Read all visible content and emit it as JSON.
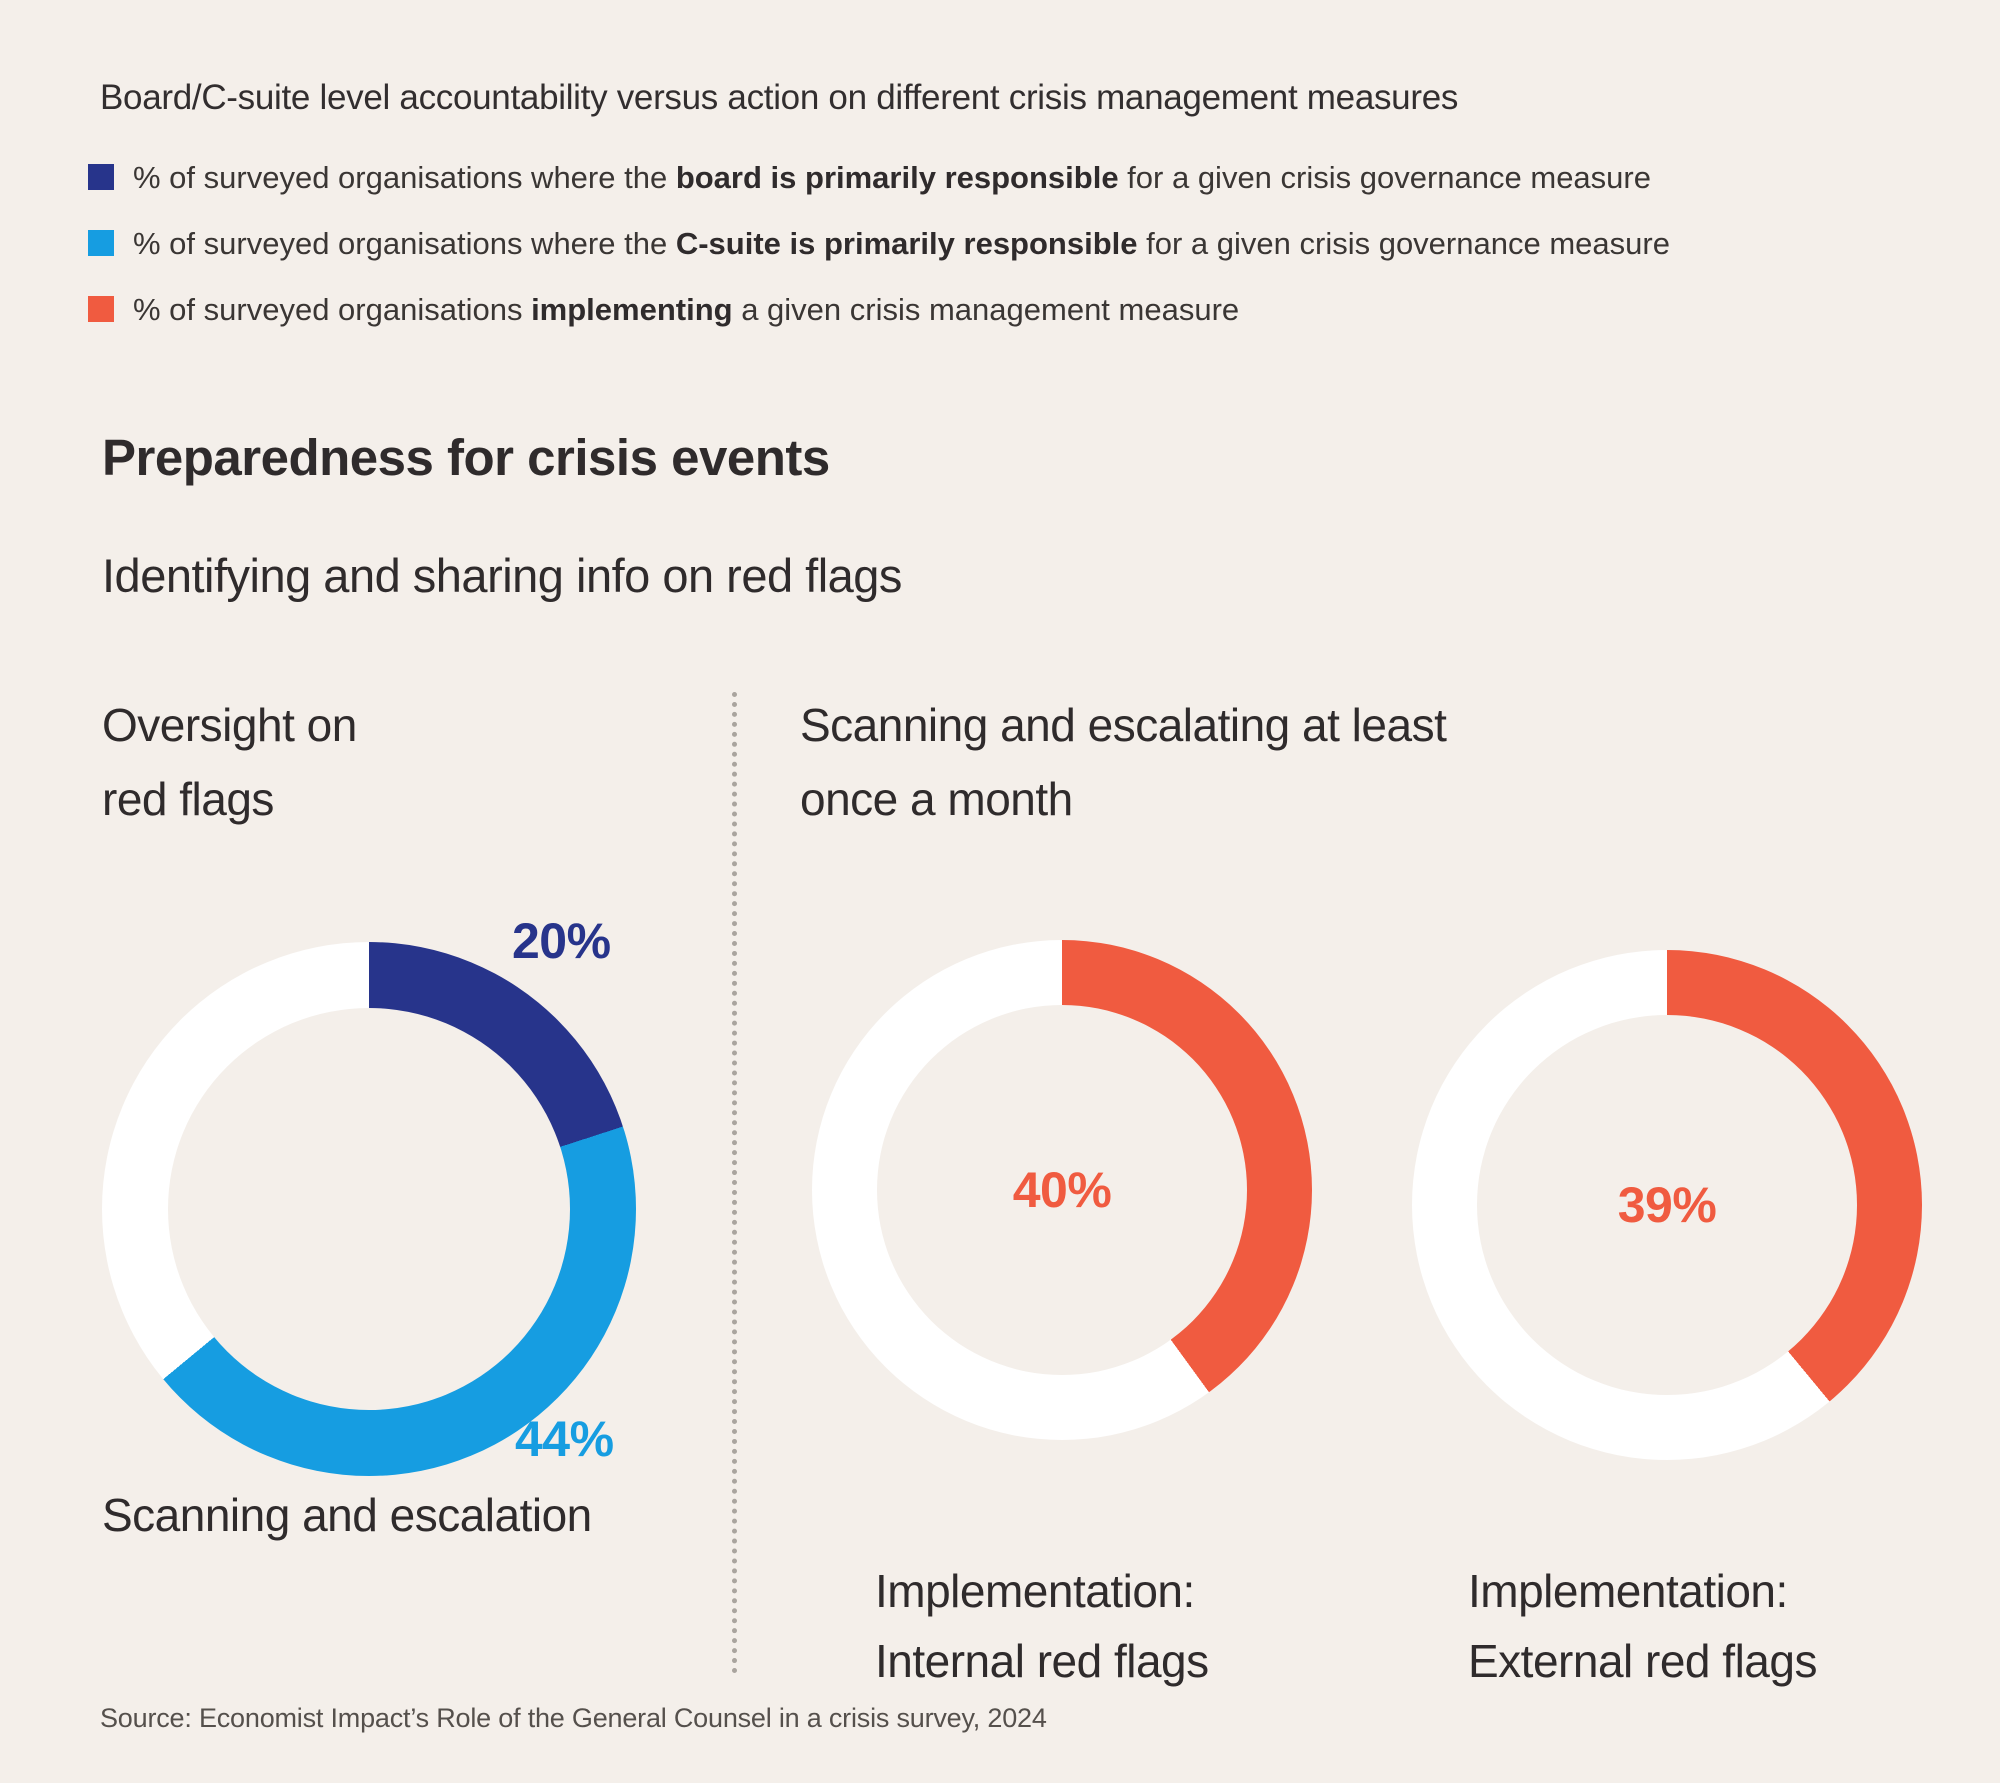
{
  "header": {
    "title": "Board/C-suite level accountability versus action on different crisis management measures"
  },
  "legend": {
    "items": [
      {
        "swatch": "navy-square",
        "color": "#27348b",
        "prefix": "% of surveyed organisations where the ",
        "bold": "board is primarily responsible",
        "suffix": " for a given crisis governance measure"
      },
      {
        "swatch": "blue-square",
        "color": "#169de1",
        "prefix": "% of surveyed organisations where the ",
        "bold": "C-suite is primarily responsible",
        "suffix": " for a given crisis governance measure"
      },
      {
        "swatch": "orange-square",
        "color": "#f05b40",
        "prefix": "% of surveyed organisations ",
        "bold": "implementing",
        "suffix": " a given crisis management measure"
      }
    ]
  },
  "section": {
    "heading": "Preparedness for crisis events",
    "subheading": "Identifying and sharing info on red flags"
  },
  "panels": {
    "left": {
      "heading": [
        "Oversight on",
        "red flags"
      ],
      "caption": "Scanning and escalation"
    },
    "right": {
      "heading": [
        "Scanning and escalating at least",
        "once a month"
      ],
      "caption_internal": [
        "Implementation:",
        "Internal red flags"
      ],
      "caption_external": [
        "Implementation:",
        "External red flags"
      ]
    }
  },
  "source": "Source: Economist Impact’s Role of the General Counsel in a crisis survey, 2024",
  "colors": {
    "background": "#f4efea",
    "navy": "#27348b",
    "light_blue": "#169de1",
    "orange": "#f05b40",
    "donut_track": "#ffffff",
    "text": "#322e2f",
    "muted_text": "#55504c",
    "divider_dots": "#a9a49e"
  },
  "chart_data": [
    {
      "type": "pie",
      "variant": "donut",
      "title": "Oversight on red flags",
      "caption": "Scanning and escalation",
      "unit": "%",
      "start_angle_deg": 0,
      "direction": "clockwise",
      "segments": [
        {
          "label": "Board is primarily responsible",
          "value": 20,
          "display": "20%",
          "color": "#27348b"
        },
        {
          "label": "C-suite is primarily responsible",
          "value": 44,
          "display": "44%",
          "color": "#169de1"
        }
      ],
      "remainder": {
        "value": 36,
        "color": "#ffffff"
      },
      "value_label_position": "outside"
    },
    {
      "type": "pie",
      "variant": "donut",
      "title": "Scanning and escalating at least once a month",
      "caption": "Implementation: Internal red flags",
      "unit": "%",
      "start_angle_deg": 0,
      "direction": "clockwise",
      "segments": [
        {
          "label": "Organisations implementing",
          "value": 40,
          "display": "40%",
          "color": "#f05b40"
        }
      ],
      "remainder": {
        "value": 60,
        "color": "#ffffff"
      },
      "value_label_position": "center"
    },
    {
      "type": "pie",
      "variant": "donut",
      "title": "Scanning and escalating at least once a month",
      "caption": "Implementation: External red flags",
      "unit": "%",
      "start_angle_deg": 0,
      "direction": "clockwise",
      "segments": [
        {
          "label": "Organisations implementing",
          "value": 39,
          "display": "39%",
          "color": "#f05b40"
        }
      ],
      "remainder": {
        "value": 61,
        "color": "#ffffff"
      },
      "value_label_position": "center"
    }
  ]
}
